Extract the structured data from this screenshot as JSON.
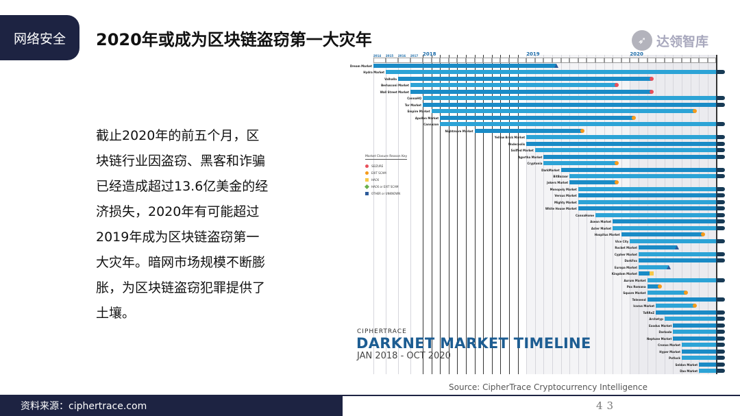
{
  "slide": {
    "tab_label": "网络安全",
    "title": "2020年或成为区块链盗窃第一大灾年",
    "logo_text": "达领智库",
    "body_lines": [
      "截止2020年的前五个月，区",
      "块链行业因盗窃、黑客和诈骗",
      "已经造成超过13.6亿美金的经",
      "济损失，2020年有可能超过",
      "2019年成为区块链盗窃第一",
      "大灾年。暗网市场规模不断膨",
      "胀，为区块链盗窃犯罪提供了",
      "土壤。"
    ],
    "footer_source": "资料来源：ciphertrace.com",
    "page_number": "43"
  },
  "figure": {
    "brand": "CIPHERTRACE",
    "title": "DARKNET MARKET TIMELINE",
    "range": "JAN 2018 - OCT 2020",
    "source": "Source: CipherTrace Cryptocurrency Intelligence",
    "years": [
      "2014",
      "2015",
      "2016",
      "2017",
      "2018",
      "2019",
      "2020"
    ],
    "legend_title": "Market Closure Reason Key",
    "legend": [
      {
        "key": "seizure",
        "label": "SEIZURE",
        "color": "#e8505b"
      },
      {
        "key": "exit",
        "label": "EXIT SCAM",
        "color": "#f59a1b"
      },
      {
        "key": "hack",
        "label": "HACK",
        "color": "#f7c948"
      },
      {
        "key": "hackexit",
        "label": "HACK or EXIT SCAM",
        "color": "#6ab04c"
      },
      {
        "key": "other",
        "label": "OTHER or UNKNOWN",
        "color": "#2d5b9a"
      }
    ],
    "colors": {
      "bar_a": "#1a8bc6",
      "bar_b": "#2ca3d6",
      "ongoing": "#173a55"
    },
    "markets": [
      {
        "name": "Dream Market",
        "start": "2014",
        "end": "2019-04",
        "reason": "other"
      },
      {
        "name": "Hydra Market",
        "start": "2015",
        "end": "ongoing"
      },
      {
        "name": "Valhalla",
        "start": "2016",
        "end": "2020-03",
        "reason": "seizure"
      },
      {
        "name": "Berlusconi Market",
        "start": "2017",
        "end": "2019-11",
        "reason": "seizure"
      },
      {
        "name": "Wall Street Market",
        "start": "2017",
        "end": "2020-03",
        "reason": "seizure"
      },
      {
        "name": "CannaHQ",
        "start": "2018-01",
        "end": "ongoing"
      },
      {
        "name": "Tor Market",
        "start": "2018-01",
        "end": "ongoing"
      },
      {
        "name": "Empire Market",
        "start": "2018-02",
        "end": "2020-08",
        "reason": "exit"
      },
      {
        "name": "Apollon Market",
        "start": "2018-03",
        "end": "2020-01",
        "reason": "exit"
      },
      {
        "name": "Cannazon",
        "start": "2018-03",
        "end": "ongoing"
      },
      {
        "name": "Nightmare Market",
        "start": "2018-07",
        "end": "2019-07",
        "reason": "exit"
      },
      {
        "name": "Yellow Brick Market",
        "start": "2019-01",
        "end": "ongoing"
      },
      {
        "name": "Underpolis",
        "start": "2019-01",
        "end": "ongoing"
      },
      {
        "name": "Sniffed Market",
        "start": "2019-02",
        "end": "ongoing"
      },
      {
        "name": "Agartha Market",
        "start": "2019-03",
        "end": "ongoing"
      },
      {
        "name": "Cryptonia",
        "start": "2019-03",
        "end": "2019-11",
        "reason": "exit"
      },
      {
        "name": "DarkMarket",
        "start": "2019-05",
        "end": "ongoing"
      },
      {
        "name": "BitBazaar",
        "start": "2019-06",
        "end": "ongoing"
      },
      {
        "name": "Jokers Market",
        "start": "2019-06",
        "end": "2019-11",
        "reason": "exit"
      },
      {
        "name": "Monopoly Market",
        "start": "2019-07",
        "end": "ongoing"
      },
      {
        "name": "Versus Market",
        "start": "2019-07",
        "end": "ongoing"
      },
      {
        "name": "Mighty Market",
        "start": "2019-07",
        "end": "ongoing"
      },
      {
        "name": "White House Market",
        "start": "2019-07",
        "end": "ongoing"
      },
      {
        "name": "CannaHome",
        "start": "2019-09",
        "end": "ongoing"
      },
      {
        "name": "Asean Market",
        "start": "2019-11",
        "end": "ongoing"
      },
      {
        "name": "Aster Market",
        "start": "2019-11",
        "end": "ongoing"
      },
      {
        "name": "Hospitus Market",
        "start": "2019-12",
        "end": "2020-09",
        "reason": "exit"
      },
      {
        "name": "Vice City",
        "start": "2020-01",
        "end": "ongoing"
      },
      {
        "name": "Rocket Market",
        "start": "2020-02",
        "end": "2020-06",
        "reason": "other"
      },
      {
        "name": "Cypher Market",
        "start": "2020-02",
        "end": "ongoing"
      },
      {
        "name": "DarkFox",
        "start": "2020-02",
        "end": "ongoing"
      },
      {
        "name": "Europa Market",
        "start": "2020-02",
        "end": "2020-05",
        "reason": "other"
      },
      {
        "name": "Kingdom Market",
        "start": "2020-02",
        "end": "2020-03",
        "reason": "hack"
      },
      {
        "name": "Aurum Market",
        "start": "2020-03",
        "end": "ongoing"
      },
      {
        "name": "Pax Romana",
        "start": "2020-03",
        "end": "2020-04",
        "reason": "exit"
      },
      {
        "name": "Square Market",
        "start": "2020-03",
        "end": "2020-07",
        "reason": "exit"
      },
      {
        "name": "Televend",
        "start": "2020-03",
        "end": "ongoing"
      },
      {
        "name": "Icarus Market",
        "start": "2020-04",
        "end": "2020-08",
        "reason": "exit"
      },
      {
        "name": "ToRReZ",
        "start": "2020-04",
        "end": "ongoing"
      },
      {
        "name": "Archetyp",
        "start": "2020-05",
        "end": "ongoing"
      },
      {
        "name": "Exodus Market",
        "start": "2020-06",
        "end": "ongoing"
      },
      {
        "name": "Darkode",
        "start": "2020-06",
        "end": "ongoing"
      },
      {
        "name": "Neptune Market",
        "start": "2020-06",
        "end": "ongoing"
      },
      {
        "name": "Cronos Market",
        "start": "2020-07",
        "end": "ongoing"
      },
      {
        "name": "Hyper Market",
        "start": "2020-07",
        "end": "ongoing"
      },
      {
        "name": "Potluck",
        "start": "2020-07",
        "end": "ongoing"
      },
      {
        "name": "Seldon Market",
        "start": "2020-09",
        "end": "ongoing"
      },
      {
        "name": "Dao Market",
        "start": "2020-09",
        "end": "ongoing"
      }
    ]
  }
}
